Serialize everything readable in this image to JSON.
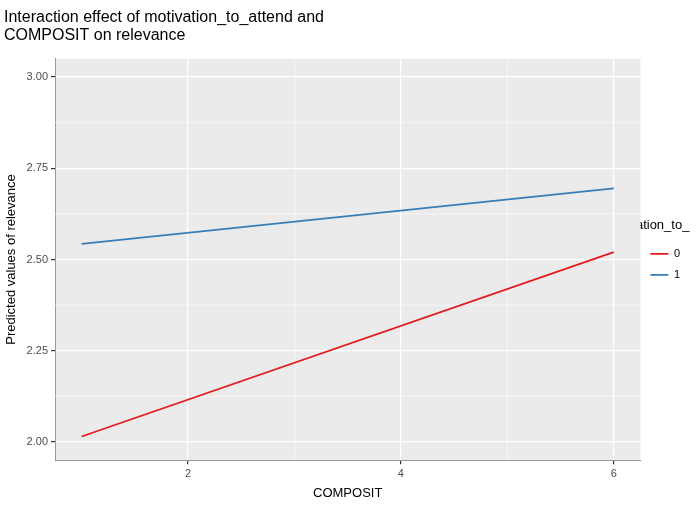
{
  "chart_data": {
    "type": "line",
    "title": [
      "Interaction effect of motivation_to_attend and",
      "COMPOSIT on relevance"
    ],
    "x_label": "COMPOSIT",
    "y_label": "Predicted values of relevance",
    "legend_title": "motivation_to_attend",
    "x": [
      1,
      6
    ],
    "series": [
      {
        "name": "0",
        "color": "#e41a1c",
        "values": [
          2.015,
          2.52
        ]
      },
      {
        "name": "1",
        "color": "#377eb8",
        "values": [
          2.543,
          2.695
        ]
      }
    ],
    "xlim": [
      0.75,
      6.25
    ],
    "xticks": [
      2,
      4,
      6
    ],
    "ylim": [
      1.95,
      3.05
    ],
    "yticks": [
      {
        "value": 2,
        "label": "2.00"
      },
      {
        "value": 2.25,
        "label": "2.25"
      },
      {
        "value": 2.5,
        "label": "2.50"
      },
      {
        "value": 2.75,
        "label": "2.75"
      },
      {
        "value": 3,
        "label": "3.00"
      }
    ],
    "grid": true,
    "legend": "right"
  }
}
